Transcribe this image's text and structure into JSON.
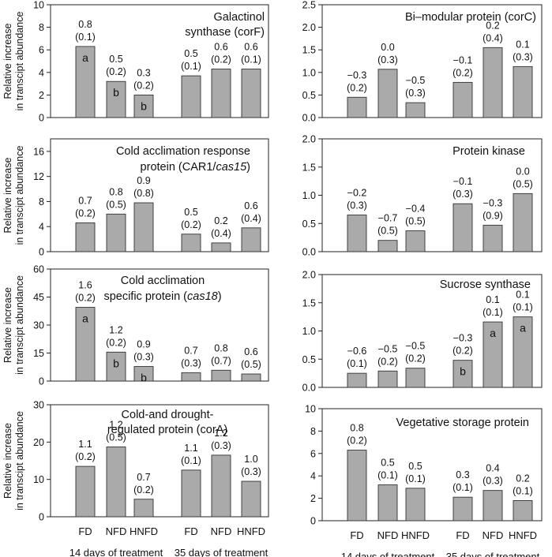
{
  "chart_data": [
    {
      "type": "bar",
      "title_lines": [
        [
          "Galactinol"
        ],
        [
          "synthase (corF)"
        ]
      ],
      "ylabel": [
        "Relative increase",
        "in transcipt abundance"
      ],
      "ylim": [
        0,
        10
      ],
      "yticks": [
        "0",
        "2",
        "4",
        "6",
        "8",
        "10"
      ],
      "categories": [
        "FD",
        "NFD",
        "HNFD",
        "FD",
        "NFD",
        "HNFD"
      ],
      "values": [
        6.3,
        3.2,
        2.0,
        3.7,
        4.3,
        4.3
      ],
      "annotations": [
        [
          "0.8",
          "(0.1)"
        ],
        [
          "0.5",
          "(0.2)"
        ],
        [
          "0.3",
          "(0.2)"
        ],
        [
          "0.5",
          "(0.1)"
        ],
        [
          "0.6",
          "(0.2)"
        ],
        [
          "0.6",
          "(0.1)"
        ]
      ],
      "letters": [
        "a",
        "b",
        "b",
        "",
        "",
        ""
      ]
    },
    {
      "type": "bar",
      "title_lines": [
        [
          "Bi–modular protein (corC)"
        ]
      ],
      "ylabel": [],
      "ylim": [
        0,
        2.5
      ],
      "yticks": [
        "0.0",
        "0.5",
        "1.0",
        "1.5",
        "2.0",
        "2.5"
      ],
      "categories": [
        "FD",
        "NFD",
        "HNFD",
        "FD",
        "NFD",
        "HNFD"
      ],
      "values": [
        0.45,
        1.07,
        0.33,
        0.78,
        1.55,
        1.13
      ],
      "annotations": [
        [
          "−0.3",
          "(0.2)"
        ],
        [
          "0.0",
          "(0.3)"
        ],
        [
          "−0.5",
          "(0.3)"
        ],
        [
          "−0.1",
          "(0.2)"
        ],
        [
          "0.2",
          "(0.4)"
        ],
        [
          "0.1",
          "(0.3)"
        ]
      ],
      "letters": [
        "",
        "",
        "",
        "",
        "",
        ""
      ]
    },
    {
      "type": "bar",
      "title_lines": [
        [
          "Cold acclimation response"
        ],
        [
          "protein (CAR1/",
          "cas15",
          ")"
        ]
      ],
      "ylabel": [
        "Relative increase",
        "in transcipt abundance"
      ],
      "ylim": [
        0,
        18
      ],
      "yticks": [
        "0",
        "4",
        "8",
        "12",
        "16"
      ],
      "categories": [
        "FD",
        "NFD",
        "HNFD",
        "FD",
        "NFD",
        "HNFD"
      ],
      "values": [
        4.6,
        6.0,
        7.8,
        2.8,
        1.4,
        3.8
      ],
      "annotations": [
        [
          "0.7",
          "(0.2)"
        ],
        [
          "0.8",
          "(0.5)"
        ],
        [
          "0.9",
          "(0.8)"
        ],
        [
          "0.5",
          "(0.2)"
        ],
        [
          "0.2",
          "(0.4)"
        ],
        [
          "0.6",
          "(0.4)"
        ]
      ],
      "letters": [
        "",
        "",
        "",
        "",
        "",
        ""
      ]
    },
    {
      "type": "bar",
      "title_lines": [
        [
          "Protein kinase"
        ]
      ],
      "ylabel": [],
      "ylim": [
        0,
        2.0
      ],
      "yticks": [
        "0.0",
        "0.5",
        "1.0",
        "1.5",
        "2.0"
      ],
      "categories": [
        "FD",
        "NFD",
        "HNFD",
        "FD",
        "NFD",
        "HNFD"
      ],
      "values": [
        0.65,
        0.2,
        0.37,
        0.85,
        0.47,
        1.03
      ],
      "annotations": [
        [
          "−0.2",
          "(0.3)"
        ],
        [
          "−0.7",
          "(0.5)"
        ],
        [
          "−0.4",
          "(0.5)"
        ],
        [
          "−0.1",
          "(0.3)"
        ],
        [
          "−0.3",
          "(0.9)"
        ],
        [
          "0.0",
          "(0.5)"
        ]
      ],
      "letters": [
        "",
        "",
        "",
        "",
        "",
        ""
      ]
    },
    {
      "type": "bar",
      "title_lines": [
        [
          "Cold acclimation"
        ],
        [
          "specific protein (",
          "cas18",
          ")"
        ]
      ],
      "ylabel": [
        "Relative increase",
        "in transcipt abundance"
      ],
      "ylim": [
        0,
        60
      ],
      "yticks": [
        "0",
        "15",
        "30",
        "45",
        "60"
      ],
      "categories": [
        "FD",
        "NFD",
        "HNFD",
        "FD",
        "NFD",
        "HNFD"
      ],
      "values": [
        39.5,
        15.5,
        7.8,
        4.5,
        5.8,
        3.8
      ],
      "annotations": [
        [
          "1.6",
          "(0.2)"
        ],
        [
          "1.2",
          "(0.2)"
        ],
        [
          "0.9",
          "(0.3)"
        ],
        [
          "0.7",
          "(0.3)"
        ],
        [
          "0.8",
          "(0.7)"
        ],
        [
          "0.6",
          "(0.5)"
        ]
      ],
      "letters": [
        "a",
        "b",
        "b",
        "",
        "",
        ""
      ]
    },
    {
      "type": "bar",
      "title_lines": [
        [
          "Sucrose synthase"
        ]
      ],
      "ylabel": [],
      "ylim": [
        0,
        2.0
      ],
      "yticks": [
        "0.0",
        "0.5",
        "1.0",
        "1.5",
        "2.0"
      ],
      "categories": [
        "FD",
        "NFD",
        "HNFD",
        "FD",
        "NFD",
        "HNFD"
      ],
      "values": [
        0.25,
        0.29,
        0.34,
        0.48,
        1.16,
        1.25
      ],
      "annotations": [
        [
          "−0.6",
          "(0.1)"
        ],
        [
          "−0.5",
          "(0.2)"
        ],
        [
          "−0.5",
          "(0.2)"
        ],
        [
          "−0.3",
          "(0.2)"
        ],
        [
          "0.1",
          "(0.1)"
        ],
        [
          "0.1",
          "(0.1)"
        ]
      ],
      "letters": [
        "",
        "",
        "",
        "b",
        "a",
        "a"
      ]
    },
    {
      "type": "bar",
      "title_lines": [
        [
          "Cold-and drought-"
        ],
        [
          "regulated protein (corA)"
        ]
      ],
      "ylabel": [
        "Relative increase",
        "in transcipt abundance"
      ],
      "ylim": [
        0,
        30
      ],
      "yticks": [
        "0",
        "10",
        "20",
        "30"
      ],
      "categories": [
        "FD",
        "NFD",
        "HNFD",
        "FD",
        "NFD",
        "HNFD"
      ],
      "values": [
        13.5,
        18.7,
        4.7,
        12.5,
        16.5,
        9.5
      ],
      "annotations": [
        [
          "1.1",
          "(0.2)"
        ],
        [
          "1.2",
          "(0.5)"
        ],
        [
          "0.7",
          "(0.2)"
        ],
        [
          "1.1",
          "(0.1)"
        ],
        [
          "1.2",
          "(0.3)"
        ],
        [
          "1.0",
          "(0.3)"
        ]
      ],
      "letters": [
        "",
        "",
        "",
        "",
        "",
        ""
      ]
    },
    {
      "type": "bar",
      "title_lines": [
        [
          "Vegetative storage protein"
        ]
      ],
      "ylabel": [],
      "ylim": [
        0,
        10
      ],
      "yticks": [
        "0",
        "2",
        "4",
        "6",
        "8",
        "10"
      ],
      "categories": [
        "FD",
        "NFD",
        "HNFD",
        "FD",
        "NFD",
        "HNFD"
      ],
      "values": [
        6.3,
        3.2,
        2.9,
        2.1,
        2.7,
        1.8
      ],
      "annotations": [
        [
          "0.8",
          "(0.2)"
        ],
        [
          "0.5",
          "(0.1)"
        ],
        [
          "0.5",
          "(0.1)"
        ],
        [
          "0.3",
          "(0.1)"
        ],
        [
          "0.4",
          "(0.3)"
        ],
        [
          "0.2",
          "(0.1)"
        ]
      ],
      "letters": [
        "",
        "",
        "",
        "",
        "",
        ""
      ]
    }
  ],
  "group_labels": [
    "14 days of treatment",
    "35 days of treatment"
  ]
}
